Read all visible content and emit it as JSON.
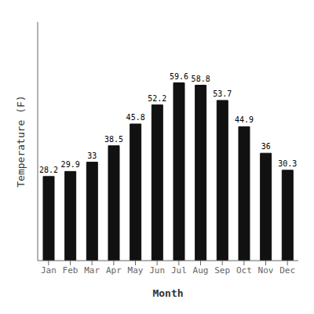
{
  "chart_data": {
    "type": "bar",
    "categories": [
      "Jan",
      "Feb",
      "Mar",
      "Apr",
      "May",
      "Jun",
      "Jul",
      "Aug",
      "Sep",
      "Oct",
      "Nov",
      "Dec"
    ],
    "values": [
      28.2,
      29.9,
      33.0,
      38.5,
      45.8,
      52.2,
      59.6,
      58.8,
      53.7,
      44.9,
      36.0,
      30.3
    ],
    "color": "#111111",
    "xlabel": "Month",
    "ylabel": "Temperature (F)",
    "ylim": [
      0,
      80
    ],
    "data_labels": true,
    "tick_labels": "x",
    "grid": false
  }
}
